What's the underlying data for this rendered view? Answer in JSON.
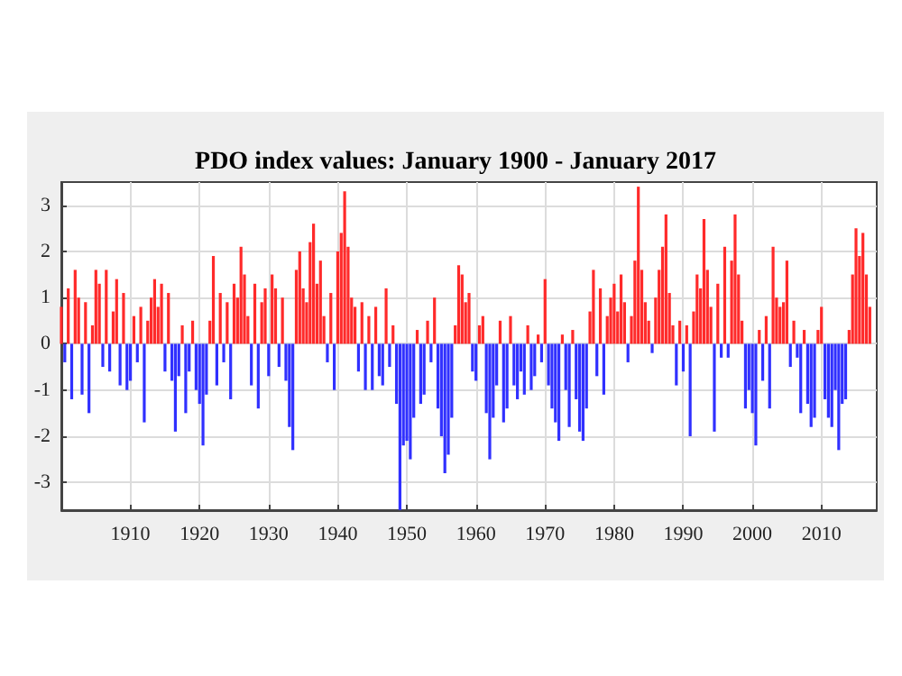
{
  "chart_data": {
    "type": "bar",
    "title": "PDO index values: January 1900 - January 2017",
    "x": [
      1900.0,
      1900.5,
      1901.0,
      1901.5,
      1902.0,
      1902.5,
      1903.0,
      1903.5,
      1904.0,
      1904.5,
      1905.0,
      1905.5,
      1906.0,
      1906.5,
      1907.0,
      1907.5,
      1908.0,
      1908.5,
      1909.0,
      1909.5,
      1910.0,
      1910.5,
      1911.0,
      1911.5,
      1912.0,
      1912.5,
      1913.0,
      1913.5,
      1914.0,
      1914.5,
      1915.0,
      1915.5,
      1916.0,
      1916.5,
      1917.0,
      1917.5,
      1918.0,
      1918.5,
      1919.0,
      1919.5,
      1920.0,
      1920.5,
      1921.0,
      1921.5,
      1922.0,
      1922.5,
      1923.0,
      1923.5,
      1924.0,
      1924.5,
      1925.0,
      1925.5,
      1926.0,
      1926.5,
      1927.0,
      1927.5,
      1928.0,
      1928.5,
      1929.0,
      1929.5,
      1930.0,
      1930.5,
      1931.0,
      1931.5,
      1932.0,
      1932.5,
      1933.0,
      1933.5,
      1934.0,
      1934.5,
      1935.0,
      1935.5,
      1936.0,
      1936.5,
      1937.0,
      1937.5,
      1938.0,
      1938.5,
      1939.0,
      1939.5,
      1940.0,
      1940.5,
      1941.0,
      1941.5,
      1942.0,
      1942.5,
      1943.0,
      1943.5,
      1944.0,
      1944.5,
      1945.0,
      1945.5,
      1946.0,
      1946.5,
      1947.0,
      1947.5,
      1948.0,
      1948.5,
      1949.0,
      1949.5,
      1950.0,
      1950.5,
      1951.0,
      1951.5,
      1952.0,
      1952.5,
      1953.0,
      1953.5,
      1954.0,
      1954.5,
      1955.0,
      1955.5,
      1956.0,
      1956.5,
      1957.0,
      1957.5,
      1958.0,
      1958.5,
      1959.0,
      1959.5,
      1960.0,
      1960.5,
      1961.0,
      1961.5,
      1962.0,
      1962.5,
      1963.0,
      1963.5,
      1964.0,
      1964.5,
      1965.0,
      1965.5,
      1966.0,
      1966.5,
      1967.0,
      1967.5,
      1968.0,
      1968.5,
      1969.0,
      1969.5,
      1970.0,
      1970.5,
      1971.0,
      1971.5,
      1972.0,
      1972.5,
      1973.0,
      1973.5,
      1974.0,
      1974.5,
      1975.0,
      1975.5,
      1976.0,
      1976.5,
      1977.0,
      1977.5,
      1978.0,
      1978.5,
      1979.0,
      1979.5,
      1980.0,
      1980.5,
      1981.0,
      1981.5,
      1982.0,
      1982.5,
      1983.0,
      1983.5,
      1984.0,
      1984.5,
      1985.0,
      1985.5,
      1986.0,
      1986.5,
      1987.0,
      1987.5,
      1988.0,
      1988.5,
      1989.0,
      1989.5,
      1990.0,
      1990.5,
      1991.0,
      1991.5,
      1992.0,
      1992.5,
      1993.0,
      1993.5,
      1994.0,
      1994.5,
      1995.0,
      1995.5,
      1996.0,
      1996.5,
      1997.0,
      1997.5,
      1998.0,
      1998.5,
      1999.0,
      1999.5,
      2000.0,
      2000.5,
      2001.0,
      2001.5,
      2002.0,
      2002.5,
      2003.0,
      2003.5,
      2004.0,
      2004.5,
      2005.0,
      2005.5,
      2006.0,
      2006.5,
      2007.0,
      2007.5,
      2008.0,
      2008.5,
      2009.0,
      2009.5,
      2010.0,
      2010.5,
      2011.0,
      2011.5,
      2012.0,
      2012.5,
      2013.0,
      2013.5,
      2014.0,
      2014.5,
      2015.0,
      2015.5,
      2016.0,
      2016.5,
      2017.0
    ],
    "values": [
      0.8,
      -0.4,
      1.2,
      -1.2,
      1.6,
      1.0,
      -1.1,
      0.9,
      -1.5,
      0.4,
      1.6,
      1.3,
      -0.5,
      1.6,
      -0.6,
      0.7,
      1.4,
      -0.9,
      1.1,
      -1.0,
      -0.8,
      0.6,
      -0.4,
      0.8,
      -1.7,
      0.5,
      1.0,
      1.4,
      0.8,
      1.3,
      -0.6,
      1.1,
      -0.8,
      -1.9,
      -0.7,
      0.4,
      -1.5,
      -0.6,
      0.5,
      -1.0,
      -1.3,
      -2.2,
      -1.1,
      0.5,
      1.9,
      -0.9,
      1.1,
      -0.4,
      0.9,
      -1.2,
      1.3,
      1.0,
      2.1,
      1.5,
      0.6,
      -0.9,
      1.3,
      -1.4,
      0.9,
      1.2,
      -0.7,
      1.5,
      1.2,
      -0.5,
      1.0,
      -0.8,
      -1.8,
      -2.3,
      1.6,
      2.0,
      1.2,
      0.9,
      2.2,
      2.6,
      1.3,
      1.8,
      0.6,
      -0.4,
      1.1,
      -1.0,
      2.0,
      2.4,
      3.3,
      2.1,
      1.0,
      0.8,
      -0.6,
      0.9,
      -1.0,
      0.6,
      -1.0,
      0.8,
      -0.7,
      -0.9,
      1.2,
      -0.5,
      0.4,
      -1.3,
      -3.6,
      -2.2,
      -2.1,
      -2.5,
      -1.6,
      0.3,
      -1.3,
      -1.1,
      0.5,
      -0.4,
      1.0,
      -1.4,
      -2.0,
      -2.8,
      -2.4,
      -1.6,
      0.4,
      1.7,
      1.5,
      0.9,
      1.1,
      -0.6,
      -0.8,
      0.4,
      0.6,
      -1.5,
      -2.5,
      -1.6,
      -0.9,
      0.5,
      -1.7,
      -1.4,
      0.6,
      -0.9,
      -1.2,
      -0.6,
      -1.1,
      0.4,
      -1.0,
      -0.7,
      0.2,
      -0.4,
      1.4,
      -0.9,
      -1.4,
      -1.7,
      -2.1,
      0.2,
      -1.0,
      -1.8,
      0.3,
      -1.2,
      -1.9,
      -2.1,
      -1.4,
      0.7,
      1.6,
      -0.7,
      1.2,
      -1.1,
      0.6,
      1.0,
      1.3,
      0.7,
      1.5,
      0.9,
      -0.4,
      0.6,
      1.8,
      3.4,
      1.6,
      0.9,
      0.5,
      -0.2,
      1.0,
      1.6,
      2.1,
      2.8,
      1.1,
      0.4,
      -0.9,
      0.5,
      -0.6,
      0.4,
      -2.0,
      0.7,
      1.5,
      1.2,
      2.7,
      1.6,
      0.8,
      -1.9,
      1.3,
      -0.3,
      2.1,
      -0.3,
      1.8,
      2.8,
      1.5,
      0.5,
      -1.4,
      -1.0,
      -1.5,
      -2.2,
      0.3,
      -0.8,
      0.6,
      -1.4,
      2.1,
      1.0,
      0.8,
      0.9,
      1.8,
      -0.5,
      0.5,
      -0.3,
      -1.5,
      0.3,
      -1.3,
      -1.8,
      -1.6,
      0.3,
      0.8,
      -1.2,
      -1.6,
      -1.8,
      -1.0,
      -2.3,
      -1.3,
      -1.2,
      0.3,
      1.5,
      2.5,
      1.9,
      2.4,
      1.5,
      0.8
    ],
    "colors": [
      "#ff2a2a",
      "#3030ff",
      "#ff2a2a",
      "#3030ff",
      "#ff2a2a",
      "#ff2a2a",
      "#3030ff",
      "#ff2a2a",
      "#3030ff",
      "#ff2a2a",
      "#ff2a2a",
      "#ff2a2a",
      "#3030ff",
      "#ff2a2a",
      "#3030ff",
      "#ff2a2a",
      "#ff2a2a",
      "#3030ff",
      "#ff2a2a",
      "#3030ff",
      "#3030ff",
      "#ff2a2a",
      "#3030ff",
      "#ff2a2a",
      "#3030ff",
      "#ff2a2a",
      "#ff2a2a",
      "#ff2a2a",
      "#ff2a2a",
      "#ff2a2a",
      "#3030ff",
      "#ff2a2a",
      "#3030ff",
      "#3030ff",
      "#3030ff",
      "#ff2a2a",
      "#3030ff",
      "#3030ff",
      "#ff2a2a",
      "#3030ff",
      "#3030ff",
      "#3030ff",
      "#3030ff",
      "#ff2a2a",
      "#ff2a2a",
      "#3030ff",
      "#ff2a2a",
      "#3030ff",
      "#ff2a2a",
      "#3030ff",
      "#ff2a2a",
      "#ff2a2a",
      "#ff2a2a",
      "#ff2a2a",
      "#ff2a2a",
      "#3030ff",
      "#ff2a2a",
      "#3030ff",
      "#ff2a2a",
      "#ff2a2a",
      "#3030ff",
      "#ff2a2a",
      "#ff2a2a",
      "#3030ff",
      "#ff2a2a",
      "#3030ff",
      "#3030ff",
      "#3030ff",
      "#ff2a2a",
      "#ff2a2a",
      "#ff2a2a",
      "#ff2a2a",
      "#ff2a2a",
      "#ff2a2a",
      "#ff2a2a",
      "#ff2a2a",
      "#ff2a2a",
      "#3030ff",
      "#ff2a2a",
      "#3030ff",
      "#ff2a2a",
      "#ff2a2a",
      "#ff2a2a",
      "#ff2a2a",
      "#ff2a2a",
      "#ff2a2a",
      "#3030ff",
      "#ff2a2a",
      "#3030ff",
      "#ff2a2a",
      "#3030ff",
      "#ff2a2a",
      "#3030ff",
      "#3030ff",
      "#ff2a2a",
      "#3030ff",
      "#ff2a2a",
      "#3030ff",
      "#3030ff",
      "#3030ff",
      "#3030ff",
      "#3030ff",
      "#3030ff",
      "#ff2a2a",
      "#3030ff",
      "#3030ff",
      "#ff2a2a",
      "#3030ff",
      "#ff2a2a",
      "#3030ff",
      "#3030ff",
      "#3030ff",
      "#3030ff",
      "#3030ff",
      "#ff2a2a",
      "#ff2a2a",
      "#ff2a2a",
      "#ff2a2a",
      "#ff2a2a",
      "#3030ff",
      "#3030ff",
      "#ff2a2a",
      "#ff2a2a",
      "#3030ff",
      "#3030ff",
      "#3030ff",
      "#3030ff",
      "#ff2a2a",
      "#3030ff",
      "#3030ff",
      "#ff2a2a",
      "#3030ff",
      "#3030ff",
      "#3030ff",
      "#3030ff",
      "#ff2a2a",
      "#3030ff",
      "#3030ff",
      "#ff2a2a",
      "#3030ff",
      "#ff2a2a",
      "#3030ff",
      "#3030ff",
      "#3030ff",
      "#3030ff",
      "#ff2a2a",
      "#3030ff",
      "#3030ff",
      "#ff2a2a",
      "#3030ff",
      "#3030ff",
      "#3030ff",
      "#3030ff",
      "#ff2a2a",
      "#ff2a2a",
      "#3030ff",
      "#ff2a2a",
      "#3030ff",
      "#ff2a2a",
      "#ff2a2a",
      "#ff2a2a",
      "#ff2a2a",
      "#ff2a2a",
      "#ff2a2a",
      "#3030ff",
      "#ff2a2a",
      "#ff2a2a",
      "#ff2a2a",
      "#ff2a2a",
      "#ff2a2a",
      "#ff2a2a",
      "#3030ff",
      "#ff2a2a",
      "#ff2a2a",
      "#ff2a2a",
      "#ff2a2a",
      "#ff2a2a",
      "#ff2a2a",
      "#3030ff",
      "#ff2a2a",
      "#3030ff",
      "#ff2a2a",
      "#3030ff",
      "#ff2a2a",
      "#ff2a2a",
      "#ff2a2a",
      "#ff2a2a",
      "#ff2a2a",
      "#ff2a2a",
      "#3030ff",
      "#ff2a2a",
      "#3030ff",
      "#ff2a2a",
      "#3030ff",
      "#ff2a2a",
      "#ff2a2a",
      "#ff2a2a",
      "#ff2a2a",
      "#3030ff",
      "#3030ff",
      "#3030ff",
      "#3030ff",
      "#ff2a2a",
      "#3030ff",
      "#ff2a2a",
      "#3030ff",
      "#ff2a2a",
      "#ff2a2a",
      "#ff2a2a",
      "#ff2a2a",
      "#ff2a2a",
      "#3030ff",
      "#ff2a2a",
      "#3030ff",
      "#3030ff",
      "#ff2a2a",
      "#3030ff",
      "#3030ff",
      "#3030ff",
      "#ff2a2a",
      "#ff2a2a",
      "#3030ff",
      "#3030ff",
      "#3030ff",
      "#3030ff",
      "#3030ff",
      "#3030ff",
      "#3030ff",
      "#ff2a2a",
      "#ff2a2a",
      "#ff2a2a",
      "#ff2a2a",
      "#ff2a2a",
      "#ff2a2a",
      "#ff2a2a"
    ],
    "xlim": [
      1900,
      2018
    ],
    "xticks": [
      1910,
      1920,
      1930,
      1940,
      1950,
      1960,
      1970,
      1980,
      1990,
      2000,
      2010
    ],
    "ylim": [
      -3.6,
      3.5
    ],
    "yticks": [
      -3,
      -2,
      -1,
      0,
      1,
      2,
      3
    ],
    "grid": true
  }
}
